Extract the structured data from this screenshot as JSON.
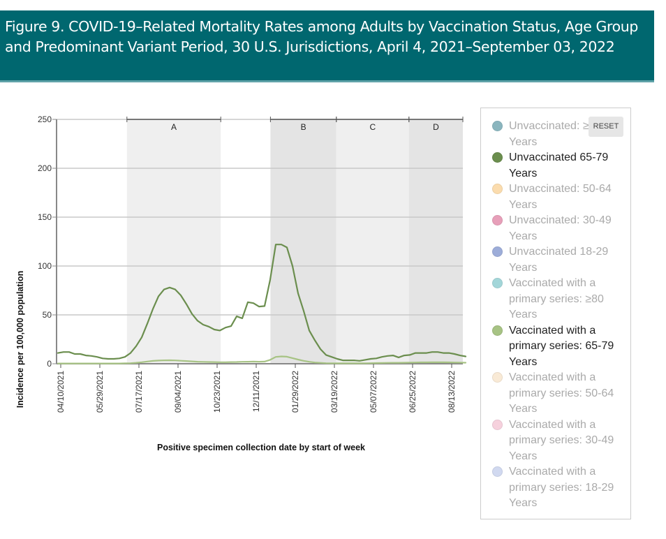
{
  "title": "Figure 9. COVID-19–Related Mortality Rates among Adults by Vaccination Status, Age Group and Predominant Variant Period, 30 U.S. Jurisdictions, April 4, 2021–September 03, 2022",
  "legend": {
    "reset_label": "RESET",
    "items": [
      {
        "label": "Unvaccinated: ≥80 Years",
        "color": "#76a9b3",
        "active": false
      },
      {
        "label": "Unvaccinated 65-79 Years",
        "color": "#6b8e4e",
        "active": true
      },
      {
        "label": "Unvaccinated: 50-64 Years",
        "color": "#fbd7a0",
        "active": false
      },
      {
        "label": "Unvaccinated: 30-49 Years",
        "color": "#e38fad",
        "active": false
      },
      {
        "label": "Unvaccinated 18-29 Years",
        "color": "#8d9fd3",
        "active": false
      },
      {
        "label": "Vaccinated with a primary series: ≥80 Years",
        "color": "#94d0d3",
        "active": false
      },
      {
        "label": "Vaccinated with a primary series: 65-79 Years",
        "color": "#a7c384",
        "active": true
      },
      {
        "label": "Vaccinated with a primary series: 50-64 Years",
        "color": "#f9e7cf",
        "active": false
      },
      {
        "label": "Vaccinated with a primary series: 30-49 Years",
        "color": "#f5c9d8",
        "active": false
      },
      {
        "label": "Vaccinated with a primary series: 18-29 Years",
        "color": "#c9d3ee",
        "active": false
      }
    ]
  },
  "chart_data": {
    "type": "line",
    "title": "",
    "xlabel": "Positive specimen collection date by start of week",
    "ylabel": "Incidence per 100,000 population",
    "ylim": [
      0,
      250
    ],
    "yticks": [
      0,
      50,
      100,
      150,
      200,
      250
    ],
    "grid": true,
    "x_start": "04/03/2021",
    "x_interval": "weekly",
    "num_weeks": 74,
    "xtick_labels": [
      "04/10/2021",
      "05/29/2021",
      "07/17/2021",
      "09/04/2021",
      "10/23/2021",
      "12/11/2021",
      "01/29/2022",
      "03/19/2022",
      "05/07/2022",
      "06/25/2022",
      "08/13/2022"
    ],
    "xtick_week_index": [
      1,
      8,
      15,
      22,
      29,
      36,
      43,
      50,
      57,
      64,
      71
    ],
    "periods": [
      {
        "label": "A",
        "start_week": 12.6,
        "end_week": 29.4,
        "shade": "#efefef"
      },
      {
        "label": "B",
        "start_week": 38.3,
        "end_week": 50.1,
        "shade": "#e4e4e4"
      },
      {
        "label": "C",
        "start_week": 50.1,
        "end_week": 63.1,
        "shade": "#efefef"
      },
      {
        "label": "D",
        "start_week": 63.1,
        "end_week": 73.0,
        "shade": "#e4e4e4"
      }
    ],
    "series": [
      {
        "name": "Unvaccinated 65-79 Years",
        "color": "#6b8e4e",
        "values": [
          11,
          12,
          12,
          10,
          10,
          8.5,
          8,
          7,
          5.5,
          5,
          5,
          5.5,
          7,
          11,
          18,
          27,
          41,
          56,
          69,
          76,
          78,
          76,
          70,
          61,
          51,
          44,
          40,
          38,
          35,
          34,
          37,
          38.5,
          48.5,
          46.5,
          63,
          62,
          58.5,
          59,
          86,
          122,
          122,
          119,
          100,
          72,
          54,
          34,
          24,
          15,
          9,
          7,
          5,
          3.5,
          3.5,
          3.5,
          3,
          4,
          5,
          5.5,
          7,
          8,
          8.5,
          6.5,
          8.5,
          9,
          11,
          11,
          11,
          12,
          12,
          11,
          11,
          10,
          8.5,
          7.5
        ]
      },
      {
        "name": "Vaccinated with a primary series: 65-79 Years",
        "color": "#a7c384",
        "values": [
          0.3,
          0.3,
          0.3,
          0.3,
          0.3,
          0.3,
          0.3,
          0.3,
          0.3,
          0.3,
          0.3,
          0.3,
          0.4,
          0.6,
          1,
          1.6,
          2.3,
          2.9,
          3.3,
          3.5,
          3.6,
          3.4,
          3.1,
          2.8,
          2.4,
          2.1,
          1.9,
          1.8,
          1.7,
          1.6,
          1.6,
          1.7,
          1.8,
          2,
          2.1,
          2.2,
          2.1,
          2.2,
          4,
          7,
          7.5,
          7.2,
          5.8,
          4.3,
          3,
          2,
          1.3,
          0.9,
          0.6,
          0.5,
          0.4,
          0.4,
          0.4,
          0.4,
          0.4,
          0.5,
          0.6,
          0.7,
          0.8,
          0.9,
          1,
          1,
          1.1,
          1.2,
          1.3,
          1.4,
          1.4,
          1.5,
          1.5,
          1.5,
          1.4,
          1.3,
          1.2,
          1.1
        ]
      }
    ]
  }
}
